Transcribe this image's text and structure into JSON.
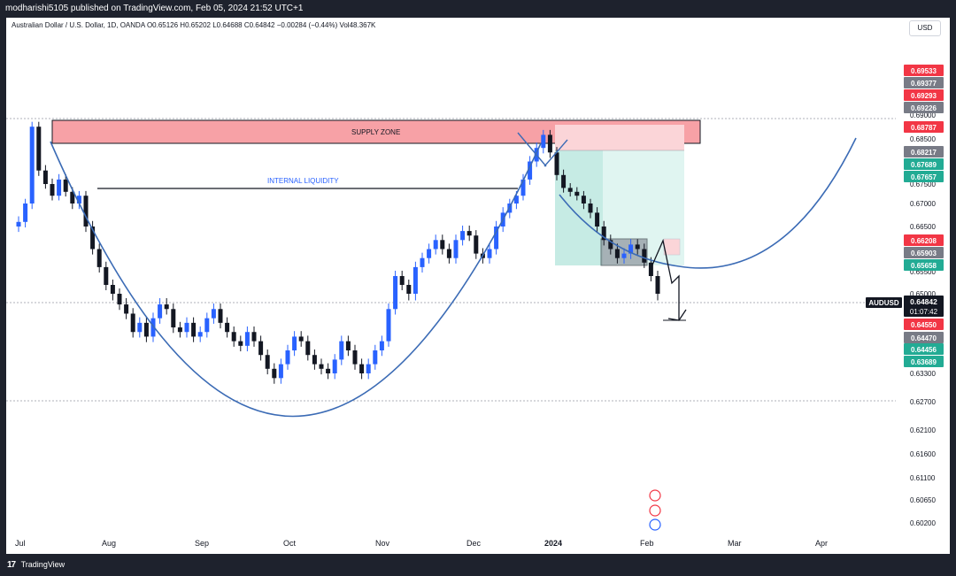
{
  "header": {
    "published_text": "modharishi5105 published on TradingView.com, Feb 05, 2024 21:52 UTC+1"
  },
  "legend": {
    "text": "Australian Dollar / U.S. Dollar, 1D, OANDA  O0.65126  H0.65202  L0.64688  C0.64842  −0.00284 (−0.44%)  Vol48.367K"
  },
  "currency_button": {
    "label": "USD"
  },
  "footer": {
    "logo": "17",
    "brand": "TradingView"
  },
  "chart_data": {
    "type": "candlestick",
    "symbol": "AUDUSD",
    "timeframe": "1D",
    "ylim": [
      0.5995,
      0.6965
    ],
    "x_axis_labels": [
      "Jul",
      "Aug",
      "Sep",
      "Oct",
      "Nov",
      "Dec",
      "2024",
      "Feb",
      "Mar",
      "Apr"
    ],
    "y_axis_ticks": [
      0.69,
      0.685,
      0.68,
      0.675,
      0.67,
      0.665,
      0.66,
      0.655,
      0.65,
      0.633,
      0.627,
      0.621,
      0.616,
      0.611,
      0.6065,
      0.602
    ],
    "y_axis_tick_labels": [
      "0.69000",
      "0.68500",
      "",
      "0.67500",
      "0.67000",
      "0.66500",
      "",
      "0.65500",
      "0.65000",
      "0.63300",
      "0.62700",
      "0.62100",
      "0.61600",
      "0.61100",
      "0.60650",
      "0.60200"
    ],
    "price_tags": [
      {
        "value": 0.69533,
        "label": "0.69533",
        "color": "#f23645"
      },
      {
        "value": 0.69377,
        "label": "0.69377",
        "color": "#787b86"
      },
      {
        "value": 0.69293,
        "label": "0.69293",
        "color": "#f23645"
      },
      {
        "value": 0.69226,
        "label": "0.69226",
        "color": "#787b86"
      },
      {
        "value": 0.68787,
        "label": "0.68787",
        "color": "#f23645"
      },
      {
        "value": 0.68217,
        "label": "0.68217",
        "color": "#787b86"
      },
      {
        "value": 0.67689,
        "label": "0.67689",
        "color": "#22ab94"
      },
      {
        "value": 0.67657,
        "label": "0.67657",
        "color": "#22ab94"
      },
      {
        "value": 0.66208,
        "label": "0.66208",
        "color": "#f23645"
      },
      {
        "value": 0.65903,
        "label": "0.65903",
        "color": "#787b86"
      },
      {
        "value": 0.65658,
        "label": "0.65658",
        "color": "#22ab94"
      },
      {
        "value": 0.6455,
        "label": "0.64550",
        "color": "#f23645"
      },
      {
        "value": 0.6447,
        "label": "0.64470",
        "color": "#787b86"
      },
      {
        "value": 0.64456,
        "label": "0.64456",
        "color": "#22ab94"
      },
      {
        "value": 0.63689,
        "label": "0.63689",
        "color": "#22ab94"
      }
    ],
    "last_price": {
      "symbol": "AUDUSD",
      "value": 0.64842,
      "label": "0.64842",
      "countdown": "01:07:42"
    },
    "annotations": {
      "supply_zone": {
        "label": "SUPPLY ZONE",
        "top": 0.6892,
        "bottom": 0.6842
      },
      "internal_liquidity": {
        "label": "INTERNAL LIQUIDITY",
        "value": 0.6738
      }
    },
    "colors": {
      "bull": "#2962ff",
      "bear": "#131722",
      "curve": "#3b6bb5",
      "zone_fill": "#f7a1a6",
      "zone_border": "#131722",
      "target_fill": "#e0f5f1",
      "stop_fill": "#fbd5d8"
    },
    "series_close_path": [
      0.666,
      0.67,
      0.688,
      0.678,
      0.675,
      0.672,
      0.676,
      0.673,
      0.67,
      0.672,
      0.665,
      0.66,
      0.656,
      0.652,
      0.65,
      0.648,
      0.646,
      0.642,
      0.644,
      0.641,
      0.645,
      0.648,
      0.647,
      0.643,
      0.642,
      0.644,
      0.641,
      0.642,
      0.645,
      0.647,
      0.644,
      0.642,
      0.64,
      0.639,
      0.642,
      0.64,
      0.637,
      0.634,
      0.632,
      0.635,
      0.638,
      0.641,
      0.64,
      0.637,
      0.635,
      0.634,
      0.633,
      0.636,
      0.64,
      0.638,
      0.635,
      0.633,
      0.635,
      0.638,
      0.64,
      0.647,
      0.654,
      0.652,
      0.65,
      0.656,
      0.658,
      0.66,
      0.662,
      0.66,
      0.658,
      0.662,
      0.664,
      0.663,
      0.659,
      0.658,
      0.66,
      0.665,
      0.668,
      0.67,
      0.672,
      0.676,
      0.68,
      0.683,
      0.686,
      0.682,
      0.677,
      0.674,
      0.673,
      0.672,
      0.67,
      0.668,
      0.665,
      0.662,
      0.66,
      0.658,
      0.659,
      0.661,
      0.66,
      0.657,
      0.654,
      0.65
    ]
  }
}
